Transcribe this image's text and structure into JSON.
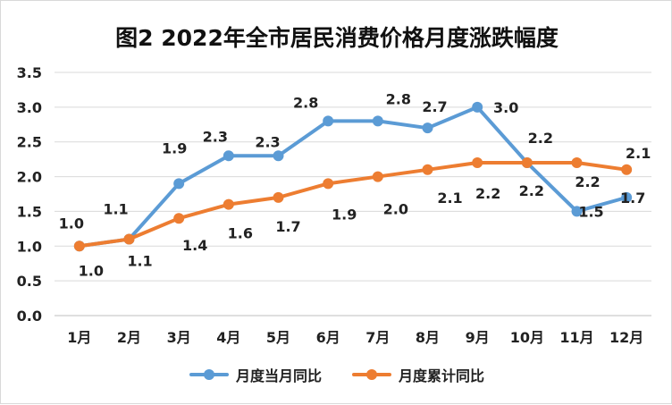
{
  "chart_data": {
    "type": "line",
    "title": "图2  2022年全市居民消费价格月度涨跌幅度",
    "categories": [
      "1月",
      "2月",
      "3月",
      "4月",
      "5月",
      "6月",
      "7月",
      "8月",
      "9月",
      "10月",
      "11月",
      "12月"
    ],
    "ylim": [
      0,
      3.5
    ],
    "yticks": [
      "0.0",
      "0.5",
      "1.0",
      "1.5",
      "2.0",
      "2.5",
      "3.0",
      "3.5"
    ],
    "grid": true,
    "legend_position": "bottom",
    "series": [
      {
        "name": "月度当月同比",
        "color": "#5b9bd5",
        "values": [
          1.0,
          1.1,
          1.9,
          2.3,
          2.3,
          2.8,
          2.8,
          2.7,
          3.0,
          2.2,
          1.5,
          1.7
        ],
        "labels": [
          "1.0",
          "1.1",
          "1.9",
          "2.3",
          "2.3",
          "2.8",
          "2.8",
          "2.7",
          "3.0",
          "2.2",
          "1.5",
          "1.7"
        ]
      },
      {
        "name": "月度累计同比",
        "color": "#ed7d31",
        "values": [
          1.0,
          1.1,
          1.4,
          1.6,
          1.7,
          1.9,
          2.0,
          2.1,
          2.2,
          2.2,
          2.2,
          2.1
        ],
        "labels": [
          "1.0",
          "1.1",
          "1.4",
          "1.6",
          "1.7",
          "1.9",
          "2.0",
          "2.1",
          "2.2",
          "2.2",
          "2.2",
          "2.1"
        ]
      }
    ]
  }
}
